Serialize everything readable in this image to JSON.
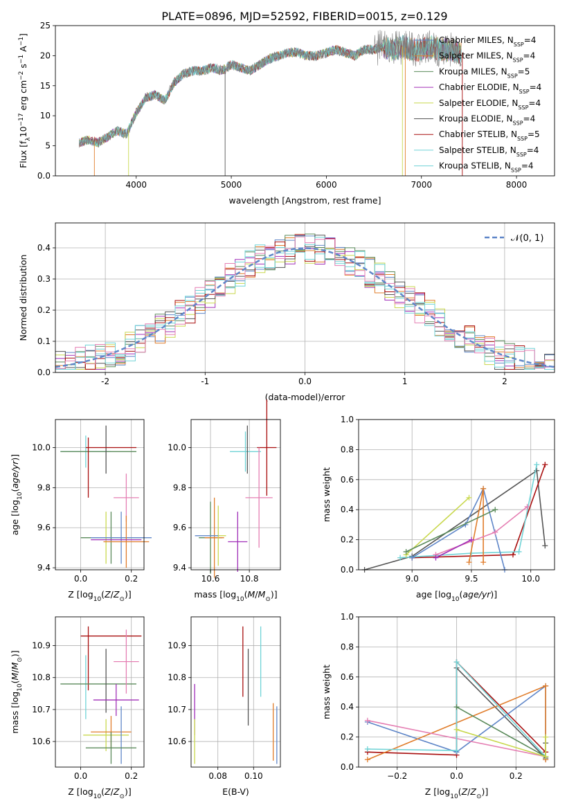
{
  "title": "PLATE=0896, MJD=52592, FIBERID=0015, z=0.129",
  "colors": {
    "c0": "#5f86c8",
    "c1": "#e07c2a",
    "c2": "#5a8a5a",
    "c3": "#a02fb8",
    "c4": "#c9d84e",
    "c5": "#555555",
    "c6": "#a80d0d",
    "c7": "#6fd3d6",
    "pink": "#e57fb3",
    "grid": "#b0b0b0"
  },
  "legend_names": [
    "Chabrier MILES, N",
    "Salpeter MILES, N",
    "Kroupa MILES, N",
    "Chabrier ELODIE, N",
    "Salpeter ELODIE, N",
    "Kroupa ELODIE, N",
    "Chabrier STELIB, N",
    "Salpeter STELIB, N",
    "Kroupa STELIB, N"
  ],
  "legend_sub": "SSP",
  "legend_vals": [
    "=4",
    "=4",
    "=5",
    "=4",
    "=4",
    "=4",
    "=5",
    "=4",
    "=4"
  ],
  "chart_data": [
    {
      "type": "line",
      "panel": "spectrum",
      "xlabel": "wavelength [Angstrom, rest frame]",
      "ylabel": "Flux [f",
      "xlim": [
        3150,
        8400
      ],
      "ylim": [
        0,
        25
      ],
      "xticks": [
        4000,
        5000,
        6000,
        7000,
        8000
      ],
      "yticks": [
        0,
        5,
        10,
        15,
        20,
        25
      ],
      "grid": false,
      "legend": "right",
      "continuum": [
        [
          3400,
          5.5
        ],
        [
          3500,
          6.0
        ],
        [
          3600,
          5.5
        ],
        [
          3700,
          6.5
        ],
        [
          3800,
          7.5
        ],
        [
          3900,
          7.0
        ],
        [
          4000,
          10.5
        ],
        [
          4100,
          13.0
        ],
        [
          4200,
          13.5
        ],
        [
          4300,
          12.5
        ],
        [
          4400,
          15.5
        ],
        [
          4500,
          17.0
        ],
        [
          4600,
          17.5
        ],
        [
          4700,
          17.5
        ],
        [
          4800,
          18.0
        ],
        [
          4900,
          17.5
        ],
        [
          5000,
          18.5
        ],
        [
          5100,
          18.0
        ],
        [
          5200,
          17.5
        ],
        [
          5300,
          18.5
        ],
        [
          5400,
          19.5
        ],
        [
          5500,
          20.0
        ],
        [
          5600,
          20.5
        ],
        [
          5700,
          20.5
        ],
        [
          5800,
          20.0
        ],
        [
          5900,
          20.0
        ],
        [
          6000,
          20.5
        ],
        [
          6100,
          21.0
        ],
        [
          6200,
          20.5
        ],
        [
          6300,
          20.0
        ],
        [
          6400,
          21.0
        ],
        [
          6500,
          21.0
        ],
        [
          6600,
          21.5
        ],
        [
          6700,
          21.0
        ],
        [
          6800,
          21.5
        ],
        [
          6900,
          21.0
        ],
        [
          7000,
          21.0
        ],
        [
          7100,
          21.5
        ],
        [
          7200,
          21.0
        ],
        [
          7300,
          21.0
        ],
        [
          7400,
          20.5
        ]
      ]
    },
    {
      "type": "step",
      "panel": "residual histogram",
      "xlabel": "(data-model)/error",
      "ylabel": "Normed distribution",
      "xlim": [
        -2.5,
        2.5
      ],
      "ylim": [
        0,
        0.48
      ],
      "xticks": [
        -2,
        -1,
        0,
        1,
        2
      ],
      "yticks": [
        0.0,
        0.1,
        0.2,
        0.3,
        0.4
      ],
      "grid": true,
      "legend": "top-right",
      "gaussian_label": "𝒩(0, 1)"
    },
    {
      "type": "scatter",
      "panel": "age vs Z",
      "xlabel": "Z [log",
      "ylabel": "age  [log",
      "xlim": [
        -0.1,
        0.25
      ],
      "ylim": [
        9.39,
        10.14
      ],
      "xticks": [
        0.0,
        0.2
      ],
      "yticks": [
        9.4,
        9.6,
        9.8,
        10.0
      ],
      "grid": true,
      "points": [
        {
          "x": 0.02,
          "y": 9.98,
          "xe": 0.1,
          "ye": 0.08,
          "c": "c7"
        },
        {
          "x": 0.07,
          "y": 9.98,
          "xe": 0.15,
          "ye": 0.0,
          "c": "c2"
        },
        {
          "x": 0.1,
          "y": 9.99,
          "xe": 0.0,
          "ye": 0.12,
          "c": "c5"
        },
        {
          "x": 0.12,
          "y": 10.0,
          "xe": 0.1,
          "ye": 0.0,
          "c": "c6"
        },
        {
          "x": 0.03,
          "y": 9.9,
          "xe": 0.0,
          "ye": 0.15,
          "c": "c6"
        },
        {
          "x": 0.18,
          "y": 9.75,
          "xe": 0.05,
          "ye": 0.12,
          "c": "pink"
        },
        {
          "x": 0.1,
          "y": 9.55,
          "xe": 0.0,
          "ye": 0.13,
          "c": "c4"
        },
        {
          "x": 0.12,
          "y": 9.55,
          "xe": 0.12,
          "ye": 0.13,
          "c": "c2"
        },
        {
          "x": 0.16,
          "y": 9.55,
          "xe": 0.12,
          "ye": 0.13,
          "c": "c0"
        },
        {
          "x": 0.18,
          "y": 9.53,
          "xe": 0.09,
          "ye": 0.13,
          "c": "c1"
        },
        {
          "x": 0.14,
          "y": 9.54,
          "xe": 0.1,
          "ye": 0.0,
          "c": "c3"
        }
      ]
    },
    {
      "type": "scatter",
      "panel": "age vs mass",
      "xlabel": "mass [log",
      "ylabel": "",
      "xlim": [
        10.5,
        10.96
      ],
      "ylim": [
        9.39,
        10.14
      ],
      "xticks": [
        10.6,
        10.8
      ],
      "yticks": [
        9.4,
        9.6,
        9.8,
        10.0
      ],
      "grid": true,
      "points": [
        {
          "x": 10.78,
          "y": 9.98,
          "xe": 0.08,
          "ye": 0.1,
          "c": "c7"
        },
        {
          "x": 10.79,
          "y": 9.99,
          "xe": 0.0,
          "ye": 0.12,
          "c": "c5"
        },
        {
          "x": 10.89,
          "y": 10.0,
          "xe": 0.05,
          "ye": 0.24,
          "c": "c6"
        },
        {
          "x": 10.85,
          "y": 9.75,
          "xe": 0.07,
          "ye": 0.25,
          "c": "pink"
        },
        {
          "x": 10.6,
          "y": 9.55,
          "xe": 0.06,
          "ye": 0.18,
          "c": "c2"
        },
        {
          "x": 10.62,
          "y": 9.55,
          "xe": 0.05,
          "ye": 0.2,
          "c": "c1"
        },
        {
          "x": 10.64,
          "y": 9.56,
          "xe": 0.04,
          "ye": 0.15,
          "c": "c4"
        },
        {
          "x": 10.58,
          "y": 9.56,
          "xe": 0.06,
          "ye": 0.0,
          "c": "c0"
        },
        {
          "x": 10.74,
          "y": 9.53,
          "xe": 0.05,
          "ye": 0.15,
          "c": "c3"
        }
      ]
    },
    {
      "type": "line",
      "panel": "mass weight vs age",
      "xlabel": "age  [log",
      "ylabel": "mass weight",
      "xlim": [
        8.55,
        10.2
      ],
      "ylim": [
        0,
        1.0
      ],
      "xticks": [
        9.0,
        9.5,
        10.0
      ],
      "yticks": [
        0.0,
        0.2,
        0.4,
        0.6,
        0.8,
        1.0
      ],
      "grid": true,
      "series": [
        {
          "c": "c5",
          "pts": [
            [
              8.6,
              0.0
            ],
            [
              9.0,
              0.09
            ],
            [
              10.05,
              0.66
            ],
            [
              10.12,
              0.16
            ]
          ]
        },
        {
          "c": "c6",
          "pts": [
            [
              9.0,
              0.08
            ],
            [
              9.85,
              0.1
            ],
            [
              10.12,
              0.7
            ]
          ]
        },
        {
          "c": "c7",
          "pts": [
            [
              8.9,
              0.08
            ],
            [
              9.5,
              0.11
            ],
            [
              9.9,
              0.12
            ],
            [
              10.05,
              0.7
            ]
          ]
        },
        {
          "c": "c0",
          "pts": [
            [
              9.0,
              0.08
            ],
            [
              9.45,
              0.3
            ],
            [
              9.6,
              0.54
            ],
            [
              9.78,
              0.0
            ]
          ]
        },
        {
          "c": "c1",
          "pts": [
            [
              9.48,
              0.05
            ],
            [
              9.6,
              0.54
            ],
            [
              9.6,
              0.05
            ]
          ]
        },
        {
          "c": "c4",
          "pts": [
            [
              8.95,
              0.1
            ],
            [
              9.48,
              0.48
            ]
          ]
        },
        {
          "c": "c2",
          "pts": [
            [
              8.95,
              0.12
            ],
            [
              9.7,
              0.4
            ]
          ]
        },
        {
          "c": "pink",
          "pts": [
            [
              9.2,
              0.1
            ],
            [
              9.7,
              0.25
            ],
            [
              9.97,
              0.42
            ]
          ]
        },
        {
          "c": "c3",
          "pts": [
            [
              9.2,
              0.08
            ],
            [
              9.5,
              0.2
            ]
          ]
        }
      ]
    },
    {
      "type": "scatter",
      "panel": "mass vs Z",
      "xlabel": "Z [log",
      "ylabel": "mass [log",
      "xlim": [
        -0.1,
        0.25
      ],
      "ylim": [
        10.52,
        10.99
      ],
      "xticks": [
        0.0,
        0.2
      ],
      "yticks": [
        10.6,
        10.7,
        10.8,
        10.9
      ],
      "grid": true,
      "points": [
        {
          "x": 0.12,
          "y": 10.93,
          "xe": 0.12,
          "ye": 0.0,
          "c": "c6"
        },
        {
          "x": 0.03,
          "y": 10.86,
          "xe": 0.0,
          "ye": 0.1,
          "c": "c6"
        },
        {
          "x": 0.02,
          "y": 10.77,
          "xe": 0.0,
          "ye": 0.1,
          "c": "c7"
        },
        {
          "x": 0.07,
          "y": 10.78,
          "xe": 0.15,
          "ye": 0.0,
          "c": "c2"
        },
        {
          "x": 0.1,
          "y": 10.79,
          "xe": 0.0,
          "ye": 0.1,
          "c": "c5"
        },
        {
          "x": 0.18,
          "y": 10.85,
          "xe": 0.05,
          "ye": 0.1,
          "c": "pink"
        },
        {
          "x": 0.14,
          "y": 10.73,
          "xe": 0.09,
          "ye": 0.05,
          "c": "c3"
        },
        {
          "x": 0.1,
          "y": 10.62,
          "xe": 0.09,
          "ye": 0.05,
          "c": "c4"
        },
        {
          "x": 0.12,
          "y": 10.63,
          "xe": 0.08,
          "ye": 0.05,
          "c": "c1"
        },
        {
          "x": 0.16,
          "y": 10.62,
          "xe": 0.0,
          "ye": 0.09,
          "c": "c0"
        },
        {
          "x": 0.12,
          "y": 10.58,
          "xe": 0.1,
          "ye": 0.05,
          "c": "c2"
        }
      ]
    },
    {
      "type": "scatter",
      "panel": "mass vs E(B-V)",
      "xlabel": "E(B-V)",
      "ylabel": "",
      "xlim": [
        0.065,
        0.115
      ],
      "ylim": [
        10.52,
        10.99
      ],
      "xticks": [
        0.08,
        0.1
      ],
      "yticks": [
        10.6,
        10.7,
        10.8,
        10.9
      ],
      "grid": true,
      "points": [
        {
          "x": 0.067,
          "y": 10.7,
          "xe": 0.0,
          "ye": 0.08,
          "c": "c3"
        },
        {
          "x": 0.067,
          "y": 10.6,
          "xe": 0.0,
          "ye": 0.07,
          "c": "c4"
        },
        {
          "x": 0.094,
          "y": 10.85,
          "xe": 0.0,
          "ye": 0.11,
          "c": "c6"
        },
        {
          "x": 0.097,
          "y": 10.77,
          "xe": 0.0,
          "ye": 0.12,
          "c": "c5"
        },
        {
          "x": 0.104,
          "y": 10.85,
          "xe": 0.0,
          "ye": 0.11,
          "c": "c7"
        },
        {
          "x": 0.111,
          "y": 10.63,
          "xe": 0.0,
          "ye": 0.09,
          "c": "c1"
        },
        {
          "x": 0.113,
          "y": 10.62,
          "xe": 0.0,
          "ye": 0.09,
          "c": "c0"
        }
      ]
    },
    {
      "type": "line",
      "panel": "mass weight vs Z",
      "xlabel": "Z [log",
      "ylabel": "mass weight",
      "xlim": [
        -0.33,
        0.33
      ],
      "ylim": [
        0,
        1.0
      ],
      "xticks": [
        -0.2,
        0.0,
        0.2
      ],
      "yticks": [
        0.0,
        0.2,
        0.4,
        0.6,
        0.8,
        1.0
      ],
      "grid": true,
      "series": [
        {
          "c": "c6",
          "pts": [
            [
              -0.3,
              0.1
            ],
            [
              0.0,
              0.08
            ],
            [
              0.0,
              0.7
            ],
            [
              0.3,
              0.1
            ]
          ]
        },
        {
          "c": "c5",
          "pts": [
            [
              0.0,
              0.66
            ],
            [
              0.3,
              0.06
            ],
            [
              0.3,
              0.16
            ]
          ]
        },
        {
          "c": "c0",
          "pts": [
            [
              -0.3,
              0.3
            ],
            [
              0.0,
              0.1
            ],
            [
              0.3,
              0.54
            ],
            [
              0.3,
              0.05
            ]
          ]
        },
        {
          "c": "c1",
          "pts": [
            [
              -0.3,
              0.05
            ],
            [
              0.3,
              0.54
            ],
            [
              0.3,
              0.05
            ]
          ]
        },
        {
          "c": "pink",
          "pts": [
            [
              -0.3,
              0.31
            ],
            [
              0.3,
              0.07
            ]
          ]
        },
        {
          "c": "c7",
          "pts": [
            [
              -0.3,
              0.12
            ],
            [
              0.0,
              0.11
            ],
            [
              0.0,
              0.7
            ],
            [
              0.3,
              0.07
            ]
          ]
        },
        {
          "c": "c2",
          "pts": [
            [
              0.0,
              0.4
            ],
            [
              0.3,
              0.07
            ]
          ]
        },
        {
          "c": "c4",
          "pts": [
            [
              0.0,
              0.25
            ],
            [
              0.3,
              0.07
            ],
            [
              0.3,
              0.2
            ]
          ]
        }
      ]
    }
  ]
}
